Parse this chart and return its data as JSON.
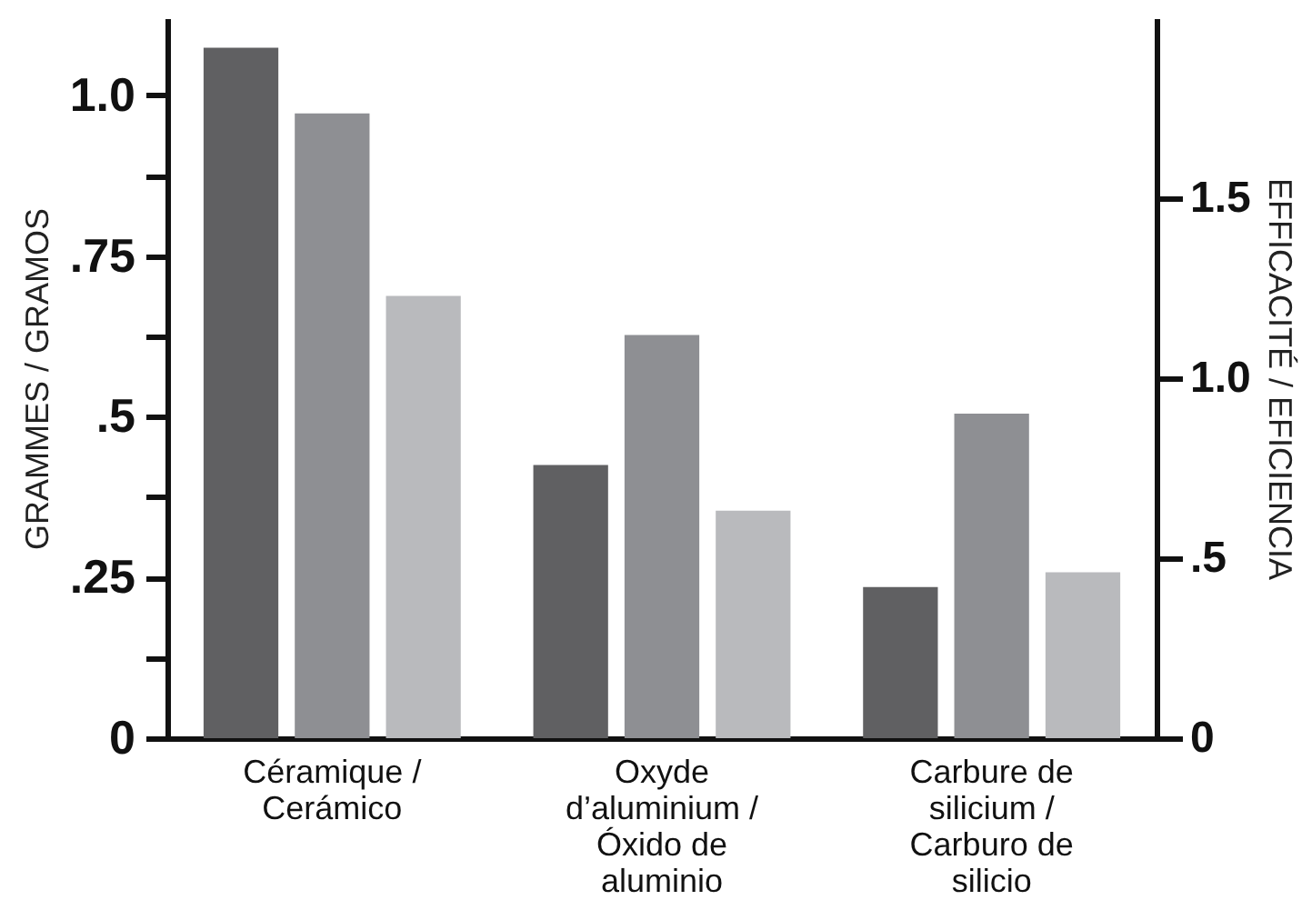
{
  "chart_data": {
    "type": "bar",
    "categories": [
      "Céramique / Cerámico",
      "Oxyde d’aluminium / Óxido de aluminio",
      "Carbure de silicium / Carburo de silicio"
    ],
    "series": [
      {
        "color": "#606062",
        "values": [
          1.074,
          0.425,
          0.235
        ]
      },
      {
        "color": "#8e8f93",
        "values": [
          0.972,
          0.627,
          0.505
        ]
      },
      {
        "color": "#b9babd",
        "values": [
          0.688,
          0.354,
          0.258
        ]
      }
    ],
    "ylabel": "GRAMMES / GRAMOS",
    "y2label": "EFFICACITÉ / EFICIENCIA",
    "ylim": [
      0,
      1.12
    ],
    "yticks": [
      0,
      {
        "value": 0.125,
        "label": null
      },
      {
        "value": 0.25,
        "label": ".25"
      },
      {
        "value": 0.375,
        "label": null
      },
      {
        "value": 0.5,
        "label": ".5"
      },
      {
        "value": 0.625,
        "label": null
      },
      {
        "value": 0.75,
        "label": ".75"
      },
      {
        "value": 0.875,
        "label": null
      },
      {
        "value": 1.0,
        "label": "1.0"
      }
    ],
    "y2lim": [
      0,
      2.0
    ],
    "y2ticks": [
      0,
      {
        "value": 0.5,
        "label": ".5"
      },
      {
        "value": 1.0,
        "label": "1.0"
      },
      {
        "value": 1.5,
        "label": "1.5"
      }
    ],
    "grid": false
  }
}
